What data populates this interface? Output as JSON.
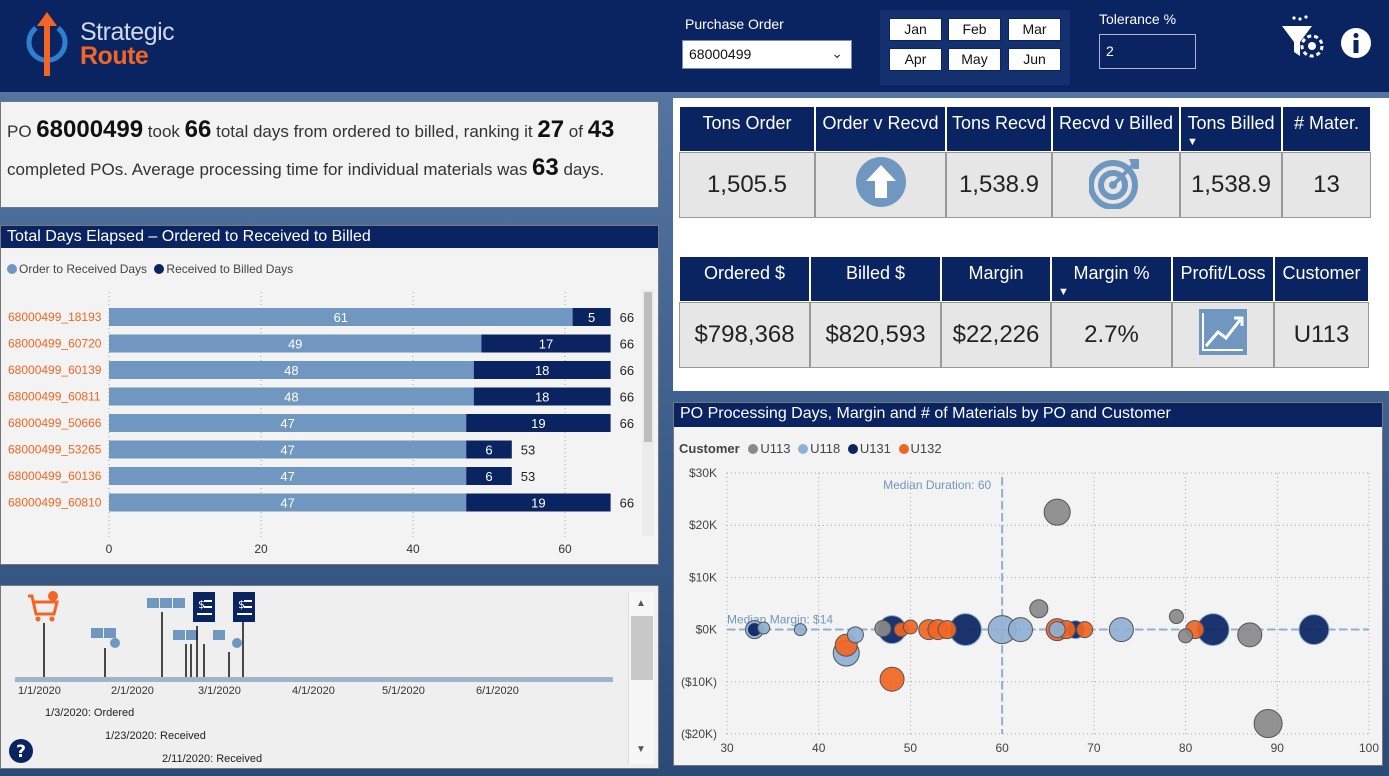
{
  "header": {
    "logo_line1": "Strategic",
    "logo_line2": "Route",
    "po_label": "Purchase Order",
    "po_value": "68000499",
    "months": [
      "Jan",
      "Feb",
      "Mar",
      "Apr",
      "May",
      "Jun"
    ],
    "tolerance_label": "Tolerance %",
    "tolerance_value": "2",
    "icons": [
      "funnel-settings-icon",
      "info-icon"
    ]
  },
  "summary": {
    "t1": "PO ",
    "po": "68000499",
    "t2": " took ",
    "days": "66",
    "t3": " total days from ordered to billed, ranking it ",
    "rank": "27",
    "t4": " of ",
    "total": "43",
    "t5": " completed POs. Average processing time for individual materials was ",
    "avg": "63",
    "t6": " days."
  },
  "kpi_row1": {
    "headers": [
      "Tons Order",
      "Order v Recvd",
      "Tons Recvd",
      "Recvd v Billed",
      "Tons Billed",
      "# Mater."
    ],
    "values": [
      "1,505.5",
      "",
      "1,538.9",
      "",
      "1,538.9",
      "13"
    ],
    "icons": [
      "",
      "arrow-up-icon",
      "",
      "target-icon",
      "",
      ""
    ]
  },
  "kpi_row2": {
    "headers": [
      "Ordered $",
      "Billed $",
      "Margin",
      "Margin %",
      "Profit/Loss",
      "Customer"
    ],
    "values": [
      "$798,368",
      "$820,593",
      "$22,226",
      "2.7%",
      "",
      "U113"
    ],
    "icons": [
      "",
      "",
      "",
      "",
      "trend-chart-icon",
      ""
    ]
  },
  "bar_chart": {
    "title": "Total Days Elapsed – Ordered to Received to Billed",
    "legend": [
      "Order to Received Days",
      "Received to Billed Days"
    ],
    "colors": {
      "series1": "#6f97c0",
      "series2": "#0a2462",
      "labels": "#f26522"
    }
  },
  "scatter_chart": {
    "title": "PO Processing Days, Margin and # of Materials by PO and Customer",
    "legend_title": "Customer",
    "legend": [
      "U113",
      "U118",
      "U131",
      "U132"
    ],
    "colors": [
      "#8a8a8a",
      "#8fb0d4",
      "#0a2462",
      "#f26522"
    ],
    "median_duration_label": "Median Duration: 60",
    "median_margin_label": "Median Margin: $14"
  },
  "timeline": {
    "axis_labels": [
      "1/1/2020",
      "2/1/2020",
      "3/1/2020",
      "4/1/2020",
      "5/1/2020",
      "6/1/2020"
    ],
    "events": [
      "1/3/2020: Ordered",
      "1/23/2020: Received",
      "2/11/2020: Received"
    ]
  },
  "chart_data": [
    {
      "type": "bar",
      "stacked": true,
      "orientation": "horizontal",
      "categories": [
        "68000499_18193",
        "68000499_60720",
        "68000499_60139",
        "68000499_60811",
        "68000499_50666",
        "68000499_53265",
        "68000499_60136",
        "68000499_60810"
      ],
      "series": [
        {
          "name": "Order to Received Days",
          "values": [
            61,
            49,
            48,
            48,
            47,
            47,
            47,
            47
          ]
        },
        {
          "name": "Received to Billed Days",
          "values": [
            5,
            17,
            18,
            18,
            19,
            6,
            6,
            19
          ]
        }
      ],
      "totals": [
        66,
        66,
        66,
        66,
        66,
        53,
        53,
        66
      ],
      "xticks": [
        0,
        20,
        40,
        60
      ],
      "xlim": [
        0,
        70
      ]
    },
    {
      "type": "scatter",
      "xlim": [
        30,
        100
      ],
      "ylim": [
        -20000,
        30000
      ],
      "xticks": [
        30,
        40,
        50,
        60,
        70,
        80,
        90,
        100
      ],
      "yticks": [
        -20000,
        -10000,
        0,
        10000,
        20000,
        30000
      ],
      "ytick_labels": [
        "($20K)",
        "($10K)",
        "$0K",
        "$10K",
        "$20K",
        "$30K"
      ],
      "median_x": 60,
      "median_y": 14,
      "points": [
        {
          "x": 66,
          "y": 22500,
          "s": 13,
          "c": 0
        },
        {
          "x": 64,
          "y": 4000,
          "s": 9,
          "c": 0
        },
        {
          "x": 79,
          "y": 2500,
          "s": 7,
          "c": 0
        },
        {
          "x": 80,
          "y": -1200,
          "s": 7,
          "c": 0
        },
        {
          "x": 87,
          "y": -1000,
          "s": 12,
          "c": 0
        },
        {
          "x": 89,
          "y": -18000,
          "s": 14,
          "c": 0
        },
        {
          "x": 47,
          "y": 200,
          "s": 8,
          "c": 0
        },
        {
          "x": 33,
          "y": 0,
          "s": 9,
          "c": 1
        },
        {
          "x": 34,
          "y": 300,
          "s": 6,
          "c": 1
        },
        {
          "x": 38,
          "y": 0,
          "s": 6,
          "c": 1
        },
        {
          "x": 44,
          "y": -1000,
          "s": 8,
          "c": 1
        },
        {
          "x": 43,
          "y": -4500,
          "s": 13,
          "c": 1
        },
        {
          "x": 60,
          "y": 0,
          "s": 14,
          "c": 1
        },
        {
          "x": 62,
          "y": 0,
          "s": 12,
          "c": 1
        },
        {
          "x": 66,
          "y": 0,
          "s": 8,
          "c": 1
        },
        {
          "x": 73,
          "y": 0,
          "s": 12,
          "c": 1
        },
        {
          "x": 33,
          "y": 0,
          "s": 7,
          "c": 2
        },
        {
          "x": 48,
          "y": 0,
          "s": 14,
          "c": 2
        },
        {
          "x": 56,
          "y": 0,
          "s": 16,
          "c": 2
        },
        {
          "x": 68,
          "y": 0,
          "s": 9,
          "c": 2
        },
        {
          "x": 83,
          "y": 0,
          "s": 16,
          "c": 2
        },
        {
          "x": 94,
          "y": 0,
          "s": 15,
          "c": 2
        },
        {
          "x": 43,
          "y": -3000,
          "s": 11,
          "c": 3
        },
        {
          "x": 48,
          "y": -9500,
          "s": 12,
          "c": 3
        },
        {
          "x": 49,
          "y": 0,
          "s": 7,
          "c": 3
        },
        {
          "x": 50,
          "y": 500,
          "s": 7,
          "c": 3
        },
        {
          "x": 52,
          "y": 0,
          "s": 10,
          "c": 3
        },
        {
          "x": 53,
          "y": 0,
          "s": 10,
          "c": 3
        },
        {
          "x": 54,
          "y": 0,
          "s": 9,
          "c": 3
        },
        {
          "x": 66,
          "y": 0,
          "s": 11,
          "c": 3
        },
        {
          "x": 67,
          "y": 0,
          "s": 9,
          "c": 3
        },
        {
          "x": 69,
          "y": 0,
          "s": 8,
          "c": 3
        },
        {
          "x": 81,
          "y": 0,
          "s": 9,
          "c": 3
        }
      ]
    }
  ]
}
